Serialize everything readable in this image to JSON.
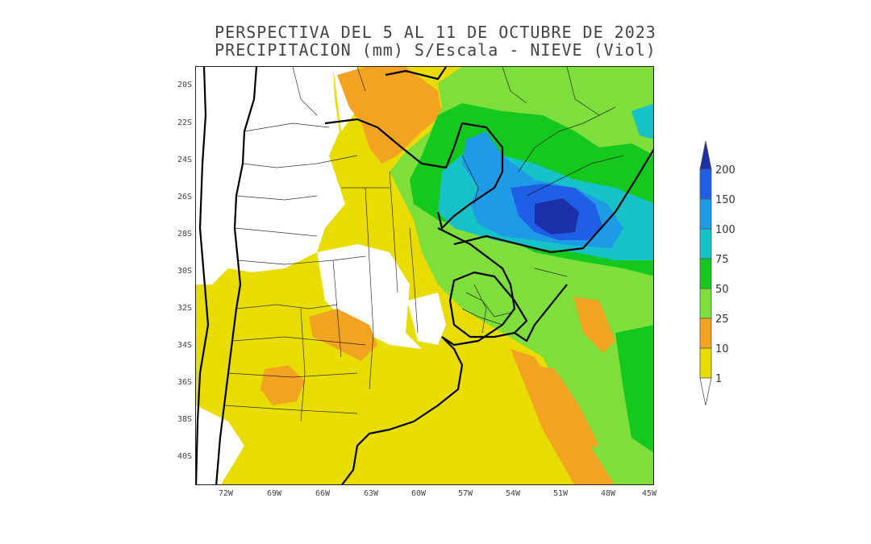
{
  "title": {
    "line1": "PERSPECTIVA DEL 5 AL 11 DE OCTUBRE DE 2023",
    "line2": "PRECIPITACION (mm) S/Escala - NIEVE (Viol)"
  },
  "map": {
    "lat_labels": [
      "20S",
      "22S",
      "24S",
      "26S",
      "28S",
      "30S",
      "32S",
      "34S",
      "36S",
      "38S",
      "40S"
    ],
    "lon_labels": [
      "72W",
      "69W",
      "66W",
      "63W",
      "60W",
      "57W",
      "54W",
      "51W",
      "48W",
      "45W"
    ]
  },
  "legend": {
    "levels": [
      {
        "label": "200",
        "color": "#1a2fa8"
      },
      {
        "label": "150",
        "color": "#1e5fe6"
      },
      {
        "label": "100",
        "color": "#1e9be6"
      },
      {
        "label": "75",
        "color": "#16c1c8"
      },
      {
        "label": "50",
        "color": "#14c81e"
      },
      {
        "label": "25",
        "color": "#7ede3c"
      },
      {
        "label": "10",
        "color": "#f3a322"
      },
      {
        "label": "1",
        "color": "#e8dc00"
      }
    ],
    "colors": {
      "lt1": "#ffffff",
      "c1_10": "#e8dc00",
      "c10_25": "#f3a322",
      "c25_50": "#7ede3c",
      "c50_75": "#14c81e",
      "c75_100": "#16c1c8",
      "c100_150": "#1e9be6",
      "c150_200": "#1e5fe6",
      "c200": "#1a2fa8"
    }
  }
}
